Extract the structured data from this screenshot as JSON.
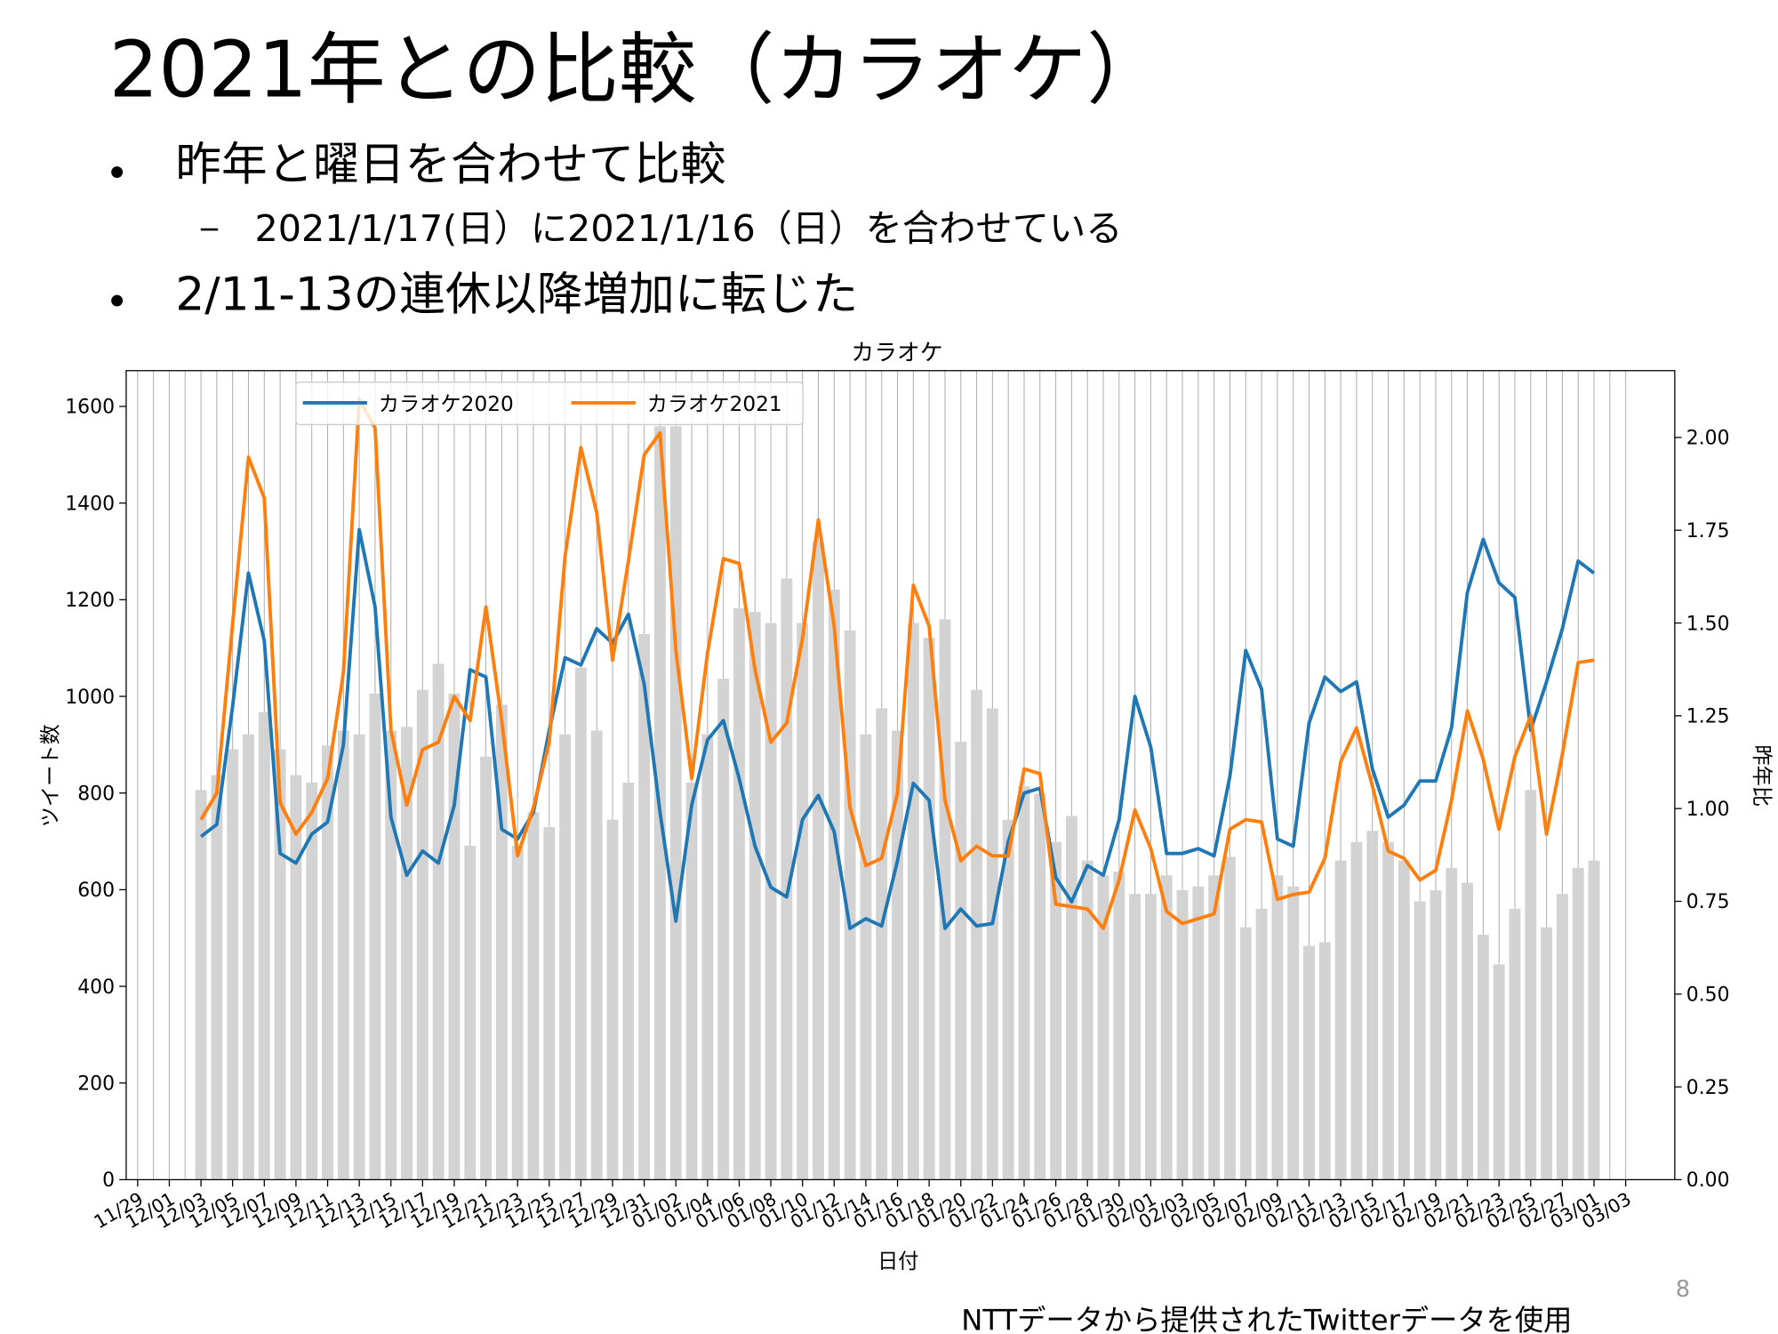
{
  "slide": {
    "title": "2021年との比較（カラオケ）",
    "bullets": [
      "昨年と曜日を合わせて比較",
      "2/11-13の連休以降増加に転じた"
    ],
    "sub_bullet": "2021/1/17(日）に2021/1/16（日）を合わせている",
    "page_number": "8",
    "footer": "NTTデータから提供されたTwitterデータを使用"
  },
  "chart_data": {
    "type": "combo",
    "title": "カラオケ",
    "xlabel": "日付",
    "ylabel": "ツイート数",
    "y2label": "昨年比",
    "categories": [
      "11/29",
      null,
      "12/01",
      null,
      "12/03",
      null,
      "12/05",
      null,
      "12/07",
      null,
      "12/09",
      null,
      "12/11",
      null,
      "12/13",
      null,
      "12/15",
      null,
      "12/17",
      null,
      "12/19",
      null,
      "12/21",
      null,
      "12/23",
      null,
      "12/25",
      null,
      "12/27",
      null,
      "12/29",
      null,
      "12/31",
      null,
      "01/02",
      null,
      "01/04",
      null,
      "01/06",
      null,
      "01/08",
      null,
      "01/10",
      null,
      "01/12",
      null,
      "01/14",
      null,
      "01/16",
      null,
      "01/18",
      null,
      "01/20",
      null,
      "01/22",
      null,
      "01/24",
      null,
      "01/26",
      null,
      "01/28",
      null,
      "01/30",
      null,
      "02/01",
      null,
      "02/03",
      null,
      "02/05",
      null,
      "02/07",
      null,
      "02/09",
      null,
      "02/11",
      null,
      "02/13",
      null,
      "02/15",
      null,
      "02/17",
      null,
      "02/19",
      null,
      "02/21",
      null,
      "02/23",
      null,
      "02/25",
      null,
      "02/27",
      null,
      "03/01",
      null,
      "03/03"
    ],
    "series": [
      {
        "name": "カラオケ2020",
        "color": "#1f77b4",
        "values": [
          null,
          null,
          null,
          null,
          710,
          735,
          980,
          1255,
          1115,
          675,
          655,
          715,
          740,
          900,
          1345,
          1185,
          750,
          630,
          680,
          655,
          775,
          1055,
          1040,
          725,
          705,
          760,
          930,
          1080,
          1065,
          1140,
          1110,
          1170,
          1025,
          760,
          535,
          775,
          910,
          950,
          830,
          690,
          605,
          585,
          745,
          795,
          720,
          520,
          540,
          525,
          660,
          820,
          785,
          520,
          560,
          525,
          530,
          700,
          800,
          810,
          625,
          575,
          650,
          630,
          745,
          1000,
          895,
          675,
          675,
          685,
          670,
          835,
          1095,
          1015,
          705,
          690,
          945,
          1040,
          1010,
          1030,
          850,
          750,
          775,
          825,
          825,
          935,
          1215,
          1325,
          1235,
          1205,
          930,
          1030,
          1140,
          1280,
          1255,
          null,
          null
        ]
      },
      {
        "name": "カラオケ2021",
        "color": "#ff7f0e",
        "values": [
          null,
          null,
          null,
          null,
          745,
          800,
          1150,
          1495,
          1410,
          780,
          715,
          760,
          830,
          1050,
          1615,
          1555,
          930,
          775,
          890,
          905,
          1000,
          950,
          1185,
          950,
          670,
          770,
          905,
          1290,
          1515,
          1380,
          1075,
          1280,
          1500,
          1545,
          1095,
          830,
          1090,
          1285,
          1275,
          1055,
          905,
          945,
          1120,
          1365,
          1145,
          770,
          650,
          665,
          800,
          1230,
          1145,
          785,
          660,
          690,
          670,
          670,
          850,
          840,
          570,
          565,
          560,
          520,
          620,
          765,
          685,
          555,
          530,
          540,
          550,
          725,
          745,
          740,
          580,
          590,
          595,
          665,
          865,
          935,
          815,
          680,
          665,
          620,
          640,
          785,
          970,
          870,
          725,
          875,
          960,
          715,
          880,
          1070,
          1075,
          null,
          null
        ]
      }
    ],
    "bar_values": [
      null,
      null,
      null,
      null,
      1.05,
      1.09,
      1.16,
      1.2,
      1.26,
      1.16,
      1.09,
      1.07,
      1.17,
      1.21,
      1.2,
      1.31,
      1.21,
      1.22,
      1.32,
      1.39,
      1.31,
      0.9,
      1.14,
      1.28,
      0.9,
      0.99,
      0.95,
      1.2,
      1.38,
      1.21,
      0.97,
      1.07,
      1.47,
      2.03,
      2.03,
      1.07,
      1.2,
      1.35,
      1.54,
      1.53,
      1.5,
      1.62,
      1.5,
      1.72,
      1.59,
      1.48,
      1.2,
      1.27,
      1.21,
      1.5,
      1.46,
      1.51,
      1.18,
      1.32,
      1.27,
      0.97,
      1.06,
      1.04,
      0.91,
      0.98,
      0.86,
      0.82,
      0.83,
      0.77,
      0.77,
      0.82,
      0.78,
      0.79,
      0.82,
      0.87,
      0.68,
      0.73,
      0.82,
      0.79,
      0.63,
      0.64,
      0.86,
      0.91,
      0.94,
      0.91,
      0.86,
      0.75,
      0.78,
      0.84,
      0.8,
      0.66,
      0.58,
      0.73,
      1.05,
      0.68,
      0.77,
      0.84,
      0.86,
      null,
      null
    ],
    "bar_color": "#d3d3d3",
    "ylim": [
      0,
      1674
    ],
    "yticks": [
      0,
      200,
      400,
      600,
      800,
      1000,
      1200,
      1400,
      1600
    ],
    "y2lim": [
      0,
      2.18
    ],
    "y2ticks": [
      {
        "value": 0,
        "label": "0.00"
      },
      0.25,
      {
        "value": 0.5,
        "label": "0.50"
      },
      0.75,
      {
        "value": 1,
        "label": "1.00"
      },
      1.25,
      {
        "value": 1.5,
        "label": "1.50"
      },
      1.75,
      {
        "value": 2,
        "label": "2.00"
      }
    ],
    "grid": "x",
    "legend": "upper left"
  }
}
